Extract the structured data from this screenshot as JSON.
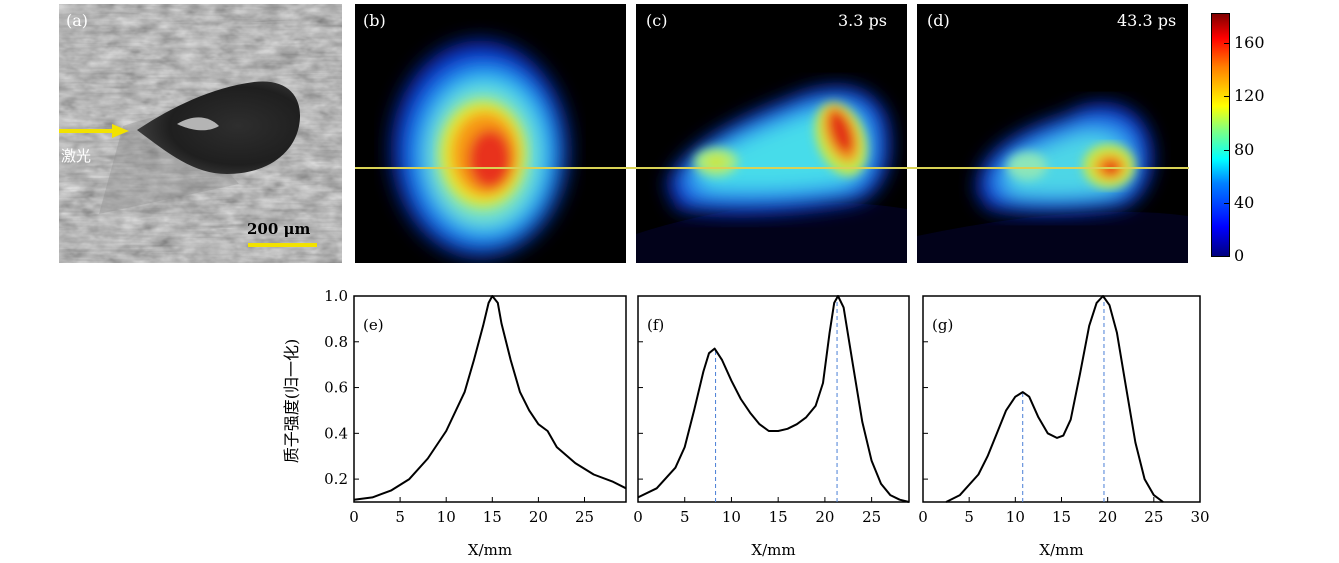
{
  "figure": {
    "panel_a": {
      "label": "(a)",
      "laser_text": "激光",
      "scale_text": "200 μm",
      "arrow_color": "#f2e200"
    },
    "panel_b": {
      "label": "(b)"
    },
    "panel_c": {
      "label": "(c)",
      "time": "3.3 ps"
    },
    "panel_d": {
      "label": "(d)",
      "time": "43.3 ps"
    },
    "lineout_color": "#d9d255",
    "colorbar": {
      "ticks": [
        "160",
        "120",
        "80",
        "40",
        "0"
      ],
      "values": [
        160,
        120,
        80,
        40,
        0
      ],
      "range": [
        0,
        182
      ],
      "colormap": "jet"
    },
    "plots": {
      "ylabel": "质子强度(归一化)",
      "xlabel": "X/mm",
      "guide_color": "#4a7fd6"
    }
  },
  "chart_data": [
    {
      "type": "line",
      "label": "(e)",
      "xlabel": "X/mm",
      "ylabel": "质子强度(归一化)",
      "xlim": [
        0,
        29.5
      ],
      "ylim": [
        0.1,
        1.0
      ],
      "xticks": [
        "0",
        "5",
        "10",
        "15",
        "20",
        "25"
      ],
      "yticks": [
        "1.0",
        "0.8",
        "0.6",
        "0.4",
        "0.2"
      ],
      "x": [
        0,
        2,
        4,
        6,
        8,
        10,
        12,
        13,
        14,
        14.6,
        15,
        15.6,
        16,
        17,
        18,
        19,
        20,
        21,
        22,
        24,
        26,
        28,
        29.5
      ],
      "y": [
        0.11,
        0.12,
        0.15,
        0.2,
        0.29,
        0.41,
        0.58,
        0.72,
        0.87,
        0.97,
        1.0,
        0.97,
        0.88,
        0.72,
        0.58,
        0.5,
        0.44,
        0.41,
        0.34,
        0.27,
        0.22,
        0.19,
        0.16
      ],
      "guides": []
    },
    {
      "type": "line",
      "label": "(f)",
      "xlabel": "X/mm",
      "ylabel": "",
      "xlim": [
        0,
        29
      ],
      "ylim": [
        0.1,
        1.0
      ],
      "xticks": [
        "0",
        "5",
        "10",
        "15",
        "20",
        "25"
      ],
      "yticks": [],
      "x": [
        0,
        2,
        4,
        5,
        6,
        7,
        7.6,
        8.2,
        9,
        10,
        11,
        12,
        13,
        14,
        15,
        16,
        17,
        18,
        19,
        19.8,
        20.5,
        21,
        21.4,
        22,
        23,
        24,
        25,
        26,
        27,
        28,
        29
      ],
      "y": [
        0.12,
        0.16,
        0.25,
        0.34,
        0.5,
        0.67,
        0.75,
        0.77,
        0.72,
        0.63,
        0.55,
        0.49,
        0.44,
        0.41,
        0.41,
        0.42,
        0.44,
        0.47,
        0.52,
        0.62,
        0.84,
        0.97,
        1.0,
        0.95,
        0.7,
        0.45,
        0.28,
        0.18,
        0.13,
        0.11,
        0.1
      ],
      "guides": [
        8.3,
        21.3
      ]
    },
    {
      "type": "line",
      "label": "(g)",
      "xlabel": "X/mm",
      "ylabel": "",
      "xlim": [
        0,
        30
      ],
      "ylim": [
        0.1,
        1.0
      ],
      "xticks": [
        "0",
        "5",
        "10",
        "15",
        "20",
        "25",
        "30"
      ],
      "yticks": [],
      "x": [
        2.5,
        4,
        6,
        7,
        8,
        9,
        10,
        10.8,
        11.5,
        12.5,
        13.5,
        14.5,
        15.2,
        16,
        17,
        18,
        18.8,
        19.5,
        20.2,
        21,
        22,
        23,
        24,
        25,
        26
      ],
      "y": [
        0.1,
        0.13,
        0.22,
        0.3,
        0.4,
        0.5,
        0.56,
        0.58,
        0.56,
        0.47,
        0.4,
        0.38,
        0.39,
        0.46,
        0.66,
        0.87,
        0.97,
        1.0,
        0.96,
        0.84,
        0.6,
        0.36,
        0.2,
        0.13,
        0.1
      ],
      "guides": [
        10.8,
        19.6
      ]
    }
  ]
}
